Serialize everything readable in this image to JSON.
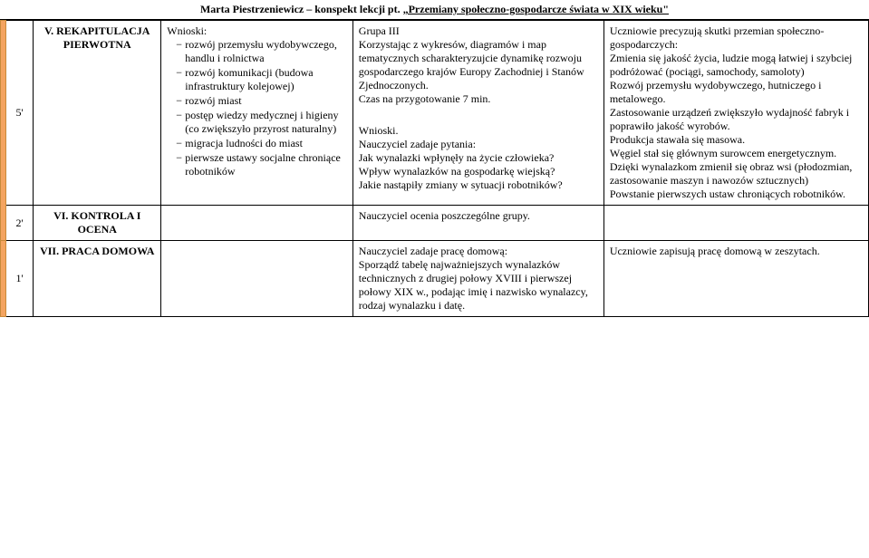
{
  "header": {
    "author": "Marta Piestrzeniewicz – konspekt lekcji pt.",
    "title": "„Przemiany społeczno-gospodarcze świata w XIX wieku\""
  },
  "rows": [
    {
      "time": "5'",
      "phase": "V. REKAPITULACJA PIERWOTNA",
      "content_label": "Wnioski:",
      "content_items": [
        "rozwój przemysłu wydobywczego, handlu i rolnictwa",
        "rozwój komunikacji (budowa infrastruktury kolejowej)",
        "rozwój miast",
        "postęp wiedzy medycznej i higieny (co zwiększyło przyrost naturalny)",
        "migracja ludności do miast",
        "pierwsze ustawy socjalne chroniące robotników"
      ],
      "activity_pre": "Grupa III\nKorzystając z wykresów, diagramów i map tematycznych scharakteryzujcie dynamikę rozwoju gospodarczego krajów Europy Zachodniej i Stanów Zjednoczonych.\nCzas na przygotowanie 7 min.",
      "activity_label": "Wnioski.",
      "activity_body": "Nauczyciel zadaje pytania:\nJak wynalazki wpłynęły na życie człowieka?\nWpływ wynalazków na gospodarkę wiejską?\nJakie nastąpiły zmiany w sytuacji robotników?",
      "results": "Uczniowie precyzują skutki przemian społeczno-gospodarczych:\nZmienia się jakość życia, ludzie mogą łatwiej i szybciej podróżować (pociągi, samochody, samoloty)\nRozwój przemysłu wydobywczego, hutniczego i metalowego.\nZastosowanie urządzeń zwiększyło wydajność fabryk i poprawiło jakość wyrobów.\nProdukcja stawała się masowa.\nWęgiel stał się głównym surowcem energetycznym.\nDzięki wynalazkom zmienił się obraz wsi (płodozmian, zastosowanie maszyn i nawozów sztucznych)\nPowstanie pierwszych ustaw chroniących robotników."
    },
    {
      "time": "2'",
      "phase": "VI. KONTROLA I OCENA",
      "activity_body": "Nauczyciel ocenia poszczególne grupy."
    },
    {
      "time": "1'",
      "phase": "VII. PRACA DOMOWA",
      "activity_body": "Nauczyciel zadaje pracę domową:\nSporządź tabelę najważniejszych wynalazków technicznych z drugiej połowy XVIII i pierwszej połowy XIX w., podając imię i nazwisko wynalazcy, rodzaj wynalazku i datę.",
      "results": "Uczniowie zapisują pracę domową w zeszytach."
    }
  ]
}
